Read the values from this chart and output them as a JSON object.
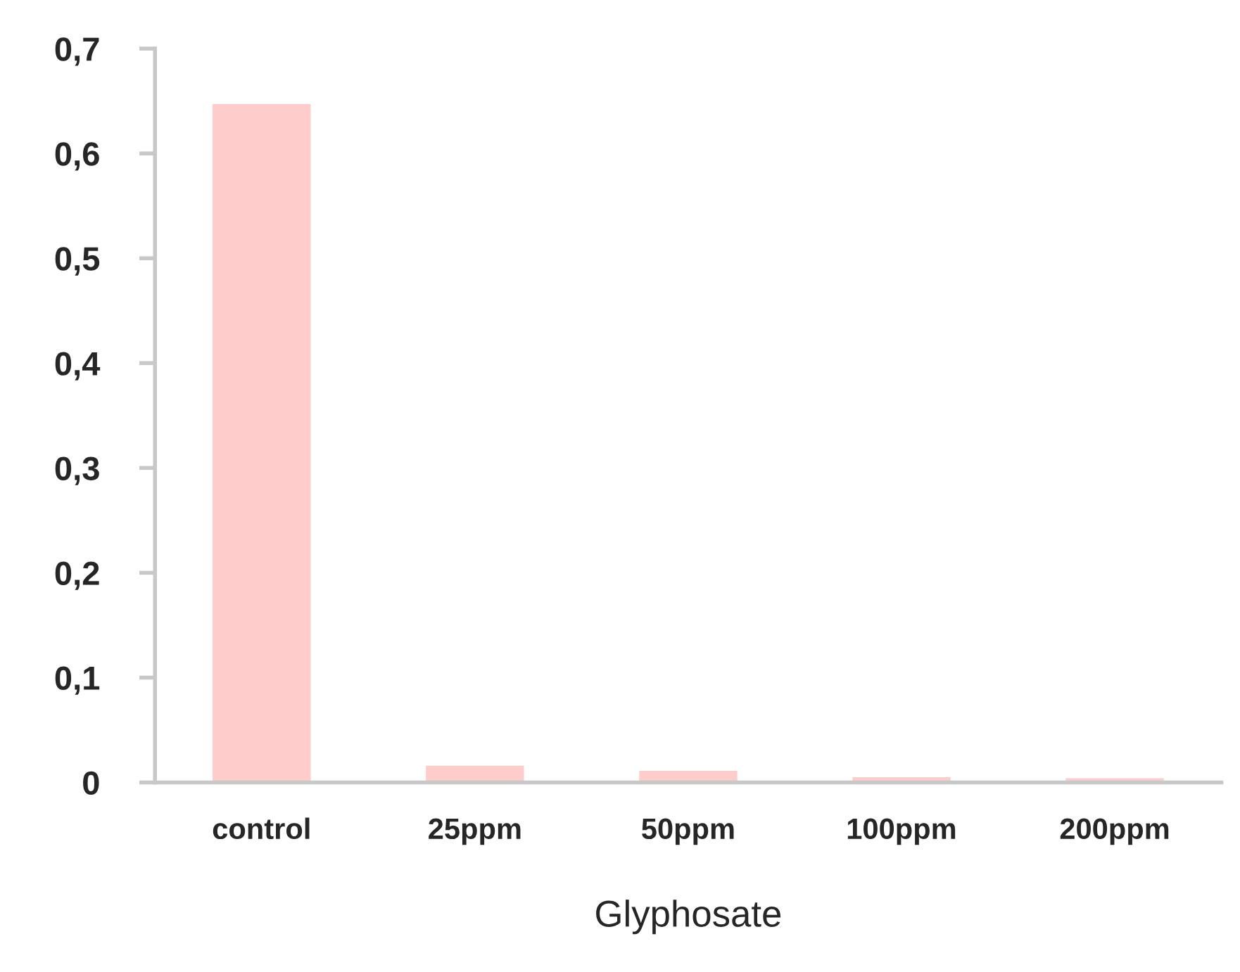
{
  "chart_data": {
    "type": "bar",
    "xlabel": "Glyphosate",
    "categories": [
      "control",
      "25ppm",
      "50ppm",
      "100ppm",
      "200ppm"
    ],
    "values": [
      0.647,
      0.016,
      0.011,
      0.005,
      0.004
    ],
    "color": "#ffcccc",
    "ylim": [
      0,
      0.7
    ],
    "yticks": [
      {
        "value": 0,
        "label": "0"
      },
      {
        "value": 0.1,
        "label": "0,1"
      },
      {
        "value": 0.2,
        "label": "0,2"
      },
      {
        "value": 0.3,
        "label": "0,3"
      },
      {
        "value": 0.4,
        "label": "0,4"
      },
      {
        "value": 0.5,
        "label": "0,5"
      },
      {
        "value": 0.6,
        "label": "0,6"
      },
      {
        "value": 0.7,
        "label": "0,7"
      }
    ],
    "grid": false
  }
}
